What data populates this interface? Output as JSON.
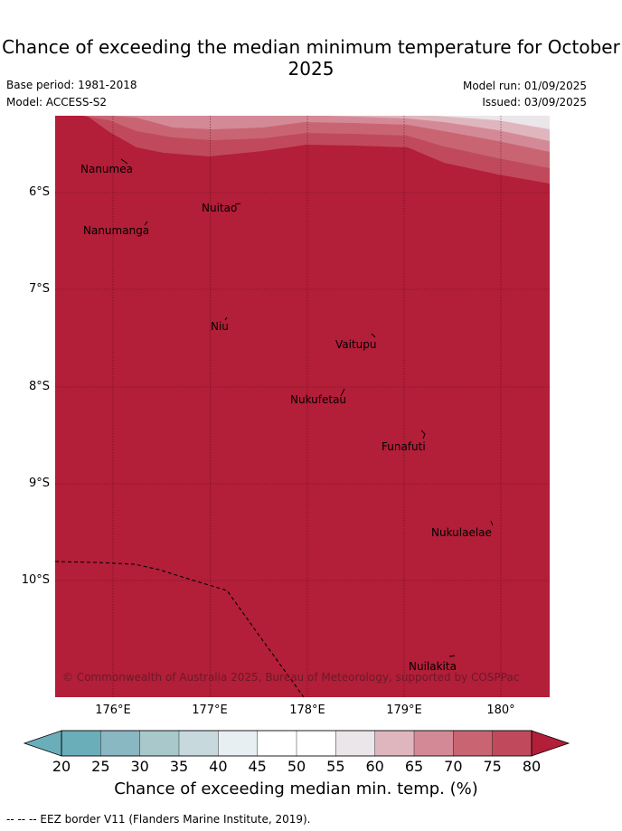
{
  "title": "Chance of exceeding the median minimum temperature for October 2025",
  "meta": {
    "base_period": "Base period: 1981-2018",
    "model": "Model: ACCESS-S2",
    "model_run": "Model run: 01/09/2025",
    "issued": "Issued: 03/09/2025"
  },
  "map": {
    "lon_range": [
      175.45,
      180.55
    ],
    "lat_range": [
      -11.2,
      -5.2
    ],
    "fill_color": "#b31e38",
    "lat_labels": [
      "6°S",
      "7°S",
      "8°S",
      "9°S",
      "10°S"
    ],
    "lon_labels": [
      "176°E",
      "177°E",
      "178°E",
      "179°E",
      "180°"
    ],
    "places": [
      {
        "name": "Nanumea",
        "lon": 176.13,
        "lat": -5.65
      },
      {
        "name": "Nuitao",
        "lon": 177.32,
        "lat": -6.11
      },
      {
        "name": "Nanumanga",
        "lon": 176.32,
        "lat": -6.29
      },
      {
        "name": "Niu",
        "lon": 177.16,
        "lat": -7.29
      },
      {
        "name": "Vaitupu",
        "lon": 178.68,
        "lat": -7.48
      },
      {
        "name": "Nukufetau",
        "lon": 178.37,
        "lat": -8.02
      },
      {
        "name": "Funafuti",
        "lon": 179.2,
        "lat": -8.52
      },
      {
        "name": "Nukulaelae",
        "lon": 179.85,
        "lat": -9.38
      },
      {
        "name": "Nuilakita",
        "lon": 179.5,
        "lat": -10.77
      }
    ],
    "copyright": "© Commonwealth of Australia 2025, Bureau of Meteorology, supported by COSPPac"
  },
  "colorbar": {
    "ticks": [
      "20",
      "25",
      "30",
      "35",
      "40",
      "45",
      "50",
      "55",
      "60",
      "65",
      "70",
      "75",
      "80"
    ],
    "colors": [
      "#6aaeba",
      "#89b7c2",
      "#a8c8cc",
      "#c7d9dd",
      "#e8eff2",
      "#ffffff",
      "#ffffff",
      "#ebe6ea",
      "#e0b6be",
      "#d48a96",
      "#c96573",
      "#c04a5c",
      "#b31e38"
    ],
    "label": "Chance of exceeding median min. temp. (%)"
  },
  "footer": "--  --  -- EEZ border V11 (Flanders Marine Institute, 2019)."
}
